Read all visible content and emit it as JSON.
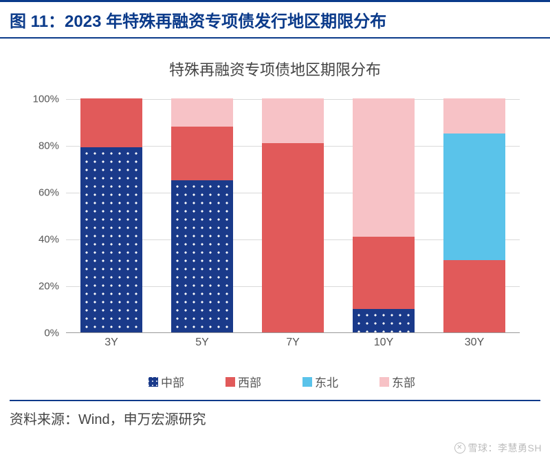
{
  "title": "图 11：2023 年特殊再融资专项债发行地区期限分布",
  "subtitle": "特殊再融资专项债地区期限分布",
  "source": "资料来源：Wind，申万宏源研究",
  "watermark": {
    "circle": "✕",
    "text": "雪球：李慧勇SH"
  },
  "chart": {
    "type": "stacked-bar",
    "categories": [
      "3Y",
      "5Y",
      "7Y",
      "10Y",
      "30Y"
    ],
    "series": [
      {
        "name": "中部",
        "color": "#1a3a8a",
        "pattern": "dots",
        "values": [
          79,
          65,
          0,
          10,
          0
        ]
      },
      {
        "name": "西部",
        "color": "#e15a5a",
        "pattern": "solid",
        "values": [
          21,
          23,
          81,
          31,
          31
        ]
      },
      {
        "name": "东北",
        "color": "#5ac3ea",
        "pattern": "solid",
        "values": [
          0,
          0,
          0,
          0,
          54
        ]
      },
      {
        "name": "东部",
        "color": "#f7c2c6",
        "pattern": "solid",
        "values": [
          0,
          12,
          19,
          59,
          15
        ]
      }
    ],
    "ylim": [
      0,
      100
    ],
    "ytick_step": 20,
    "ytick_suffix": "%",
    "background_color": "#ffffff",
    "grid_color": "#d9d9d9",
    "axis_color": "#999999",
    "bar_width_ratio": 0.68,
    "label_fontsize": 15,
    "legend_fontsize": 17,
    "title_color": "#0a3a8a",
    "title_fontsize": 24,
    "subtitle_fontsize": 22,
    "source_fontsize": 20
  }
}
